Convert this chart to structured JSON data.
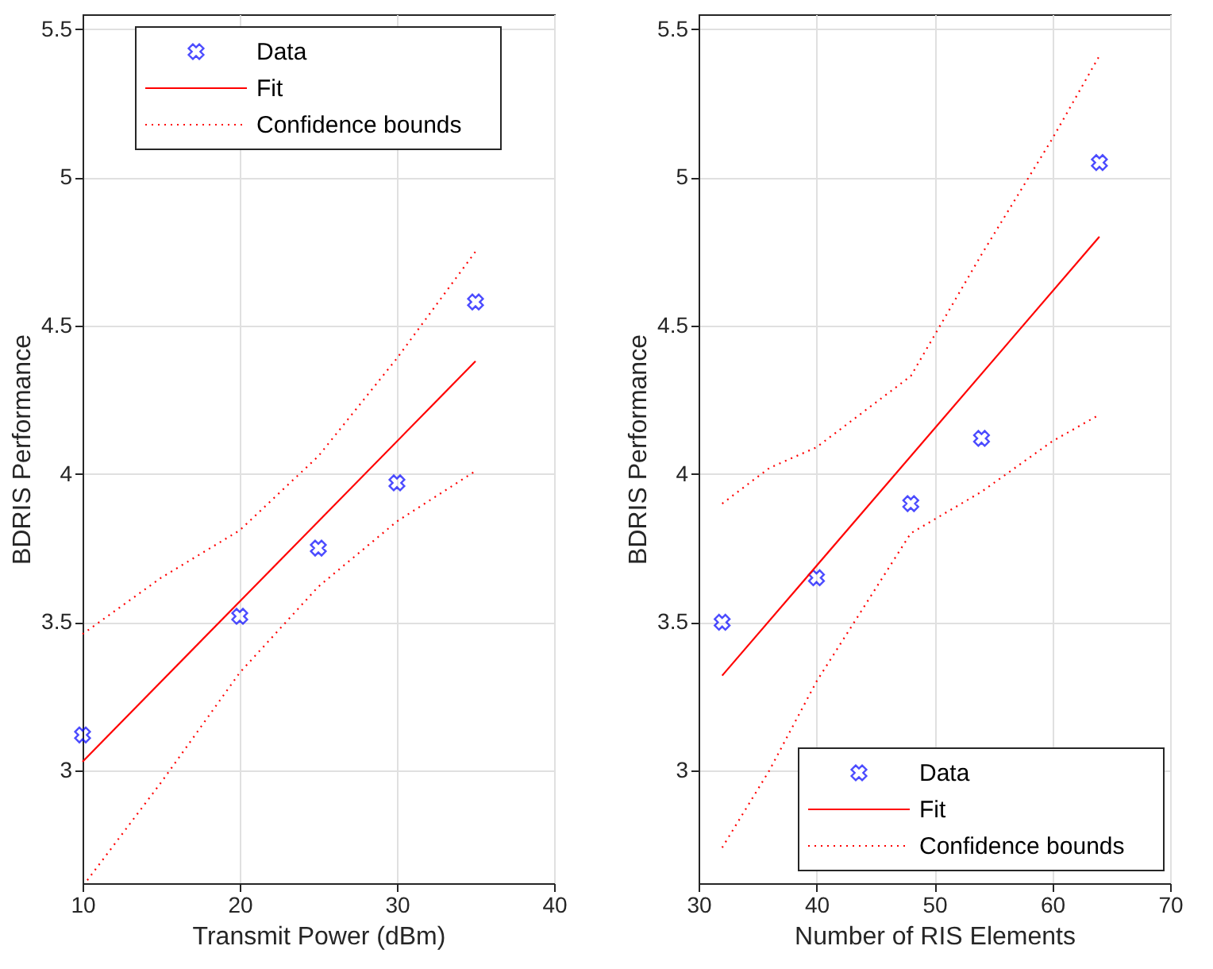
{
  "chart_data": [
    {
      "type": "scatter",
      "xlabel": "Transmit Power (dBm)",
      "ylabel": "BDRIS Performance",
      "xlim": [
        10,
        40
      ],
      "xticks": [
        10,
        20,
        30,
        40
      ],
      "ylim": [
        2.62,
        5.55
      ],
      "yticks": [
        3,
        3.5,
        4,
        4.5,
        5,
        5.5
      ],
      "grid": true,
      "legend": "top",
      "series": [
        {
          "name": "Data",
          "marker": "cross",
          "color": "#0000ff",
          "x": [
            10,
            20,
            25,
            30,
            35
          ],
          "values": [
            3.12,
            3.52,
            3.75,
            3.97,
            4.58
          ]
        },
        {
          "name": "Fit",
          "type": "line",
          "line_style": "solid",
          "color": "#ff0000",
          "x": [
            10,
            35
          ],
          "values": [
            3.03,
            4.38
          ]
        },
        {
          "name": "Confidence bounds",
          "type": "line",
          "line_style": "dotted",
          "color": "#ff0000",
          "x": [
            10,
            15,
            20,
            25,
            30,
            35
          ],
          "values": [
            3.46,
            3.65,
            3.81,
            4.06,
            4.39,
            4.75
          ]
        },
        {
          "type": "line",
          "line_style": "dotted",
          "color": "#ff0000",
          "x": [
            10.3,
            15,
            20,
            25,
            30,
            35
          ],
          "values": [
            2.63,
            2.96,
            3.33,
            3.62,
            3.84,
            4.01
          ]
        }
      ]
    },
    {
      "type": "scatter",
      "xlabel": "Number of RIS Elements",
      "ylabel": "BDRIS Performance",
      "xlim": [
        30,
        70
      ],
      "xticks": [
        30,
        40,
        50,
        60,
        70
      ],
      "ylim": [
        2.62,
        5.55
      ],
      "yticks": [
        3,
        3.5,
        4,
        4.5,
        5,
        5.5
      ],
      "grid": true,
      "legend": "bottom right",
      "series": [
        {
          "name": "Data",
          "marker": "cross",
          "color": "#0000ff",
          "x": [
            32,
            40,
            48,
            54,
            64
          ],
          "values": [
            3.5,
            3.65,
            3.9,
            4.12,
            5.05
          ]
        },
        {
          "name": "Fit",
          "type": "line",
          "line_style": "solid",
          "color": "#ff0000",
          "x": [
            32,
            64
          ],
          "values": [
            3.32,
            4.8
          ]
        },
        {
          "name": "Confidence bounds",
          "type": "line",
          "line_style": "dotted",
          "color": "#ff0000",
          "x": [
            32,
            36,
            40,
            48,
            54,
            60,
            64
          ],
          "values": [
            3.9,
            4.02,
            4.09,
            4.33,
            4.74,
            5.13,
            5.41
          ]
        },
        {
          "type": "line",
          "line_style": "dotted",
          "color": "#ff0000",
          "x": [
            32,
            36,
            40,
            48,
            54,
            60,
            64
          ],
          "values": [
            2.74,
            3.0,
            3.3,
            3.8,
            3.94,
            4.11,
            4.2
          ]
        }
      ]
    }
  ]
}
